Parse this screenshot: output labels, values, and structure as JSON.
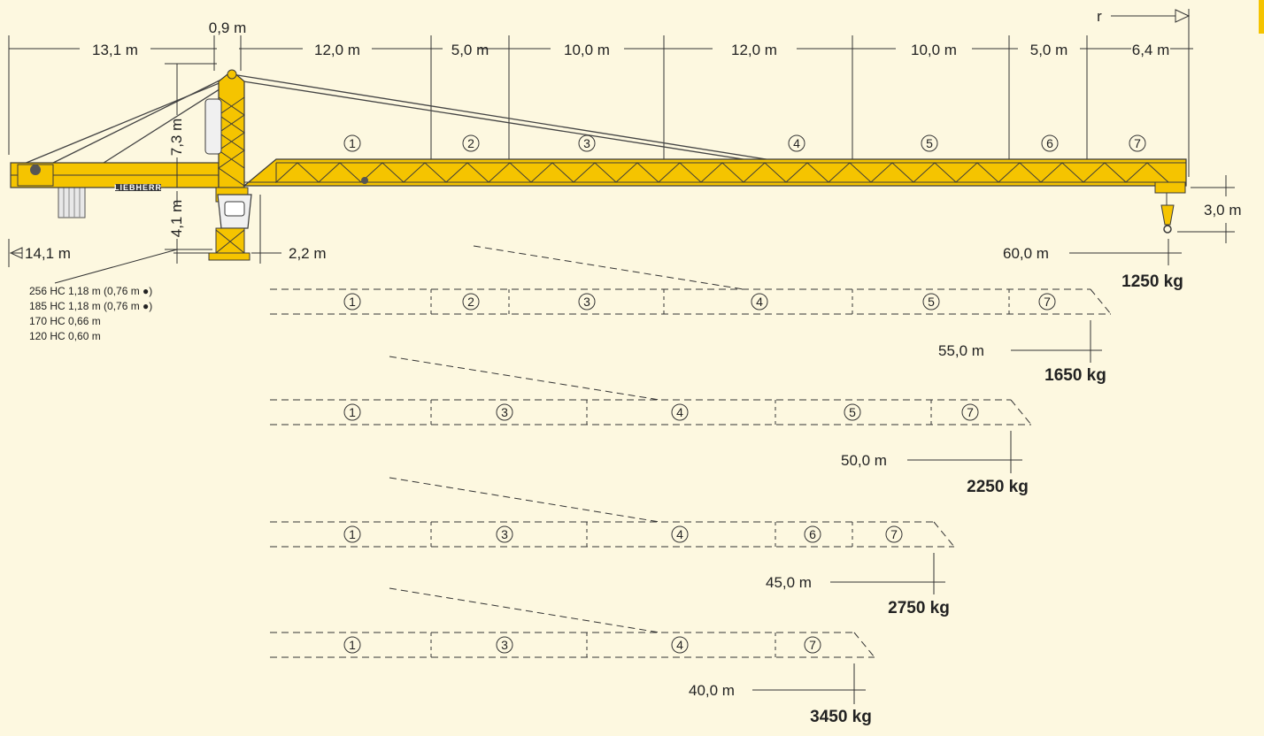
{
  "top_dims": {
    "counterjib": "13,1 m",
    "head": "0,9 m",
    "seg1": "12,0 m",
    "seg2": "5,0 m",
    "seg3": "10,0 m",
    "seg4": "12,0 m",
    "seg5": "10,0 m",
    "seg6": "5,0 m",
    "seg7": "6,4 m",
    "radius_label": "r"
  },
  "side_dims": {
    "tower_head_height": "7,3 m",
    "slewing_height": "4,1 m",
    "tail_radius": "14,1 m",
    "tower_width": "2,2 m",
    "hook_drop": "3,0 m"
  },
  "brand": "LIEBHERR",
  "main_config": {
    "radius": "60,0 m",
    "load": "1250 kg",
    "segments": [
      "1",
      "2",
      "3",
      "4",
      "5",
      "6",
      "7"
    ]
  },
  "alt_configs": [
    {
      "radius": "55,0 m",
      "load": "1650 kg",
      "segments": [
        "1",
        "2",
        "3",
        "4",
        "5",
        "7"
      ]
    },
    {
      "radius": "50,0 m",
      "load": "2250 kg",
      "segments": [
        "1",
        "3",
        "4",
        "5",
        "7"
      ]
    },
    {
      "radius": "45,0 m",
      "load": "2750 kg",
      "segments": [
        "1",
        "3",
        "4",
        "6",
        "7"
      ]
    },
    {
      "radius": "40,0 m",
      "load": "3450 kg",
      "segments": [
        "1",
        "3",
        "4",
        "7"
      ]
    }
  ],
  "tower_notes": [
    "256 HC 1,18 m (0,76 m ●)",
    "185 HC 1,18 m (0,76 m ●)",
    "170 HC 0,66 m",
    "120 HC 0,60 m"
  ],
  "colors": {
    "crane_yellow": "#f5c400",
    "frame": "#3a3a3a",
    "background": "#fdf8e0",
    "accent_edge": "#f5c400"
  }
}
